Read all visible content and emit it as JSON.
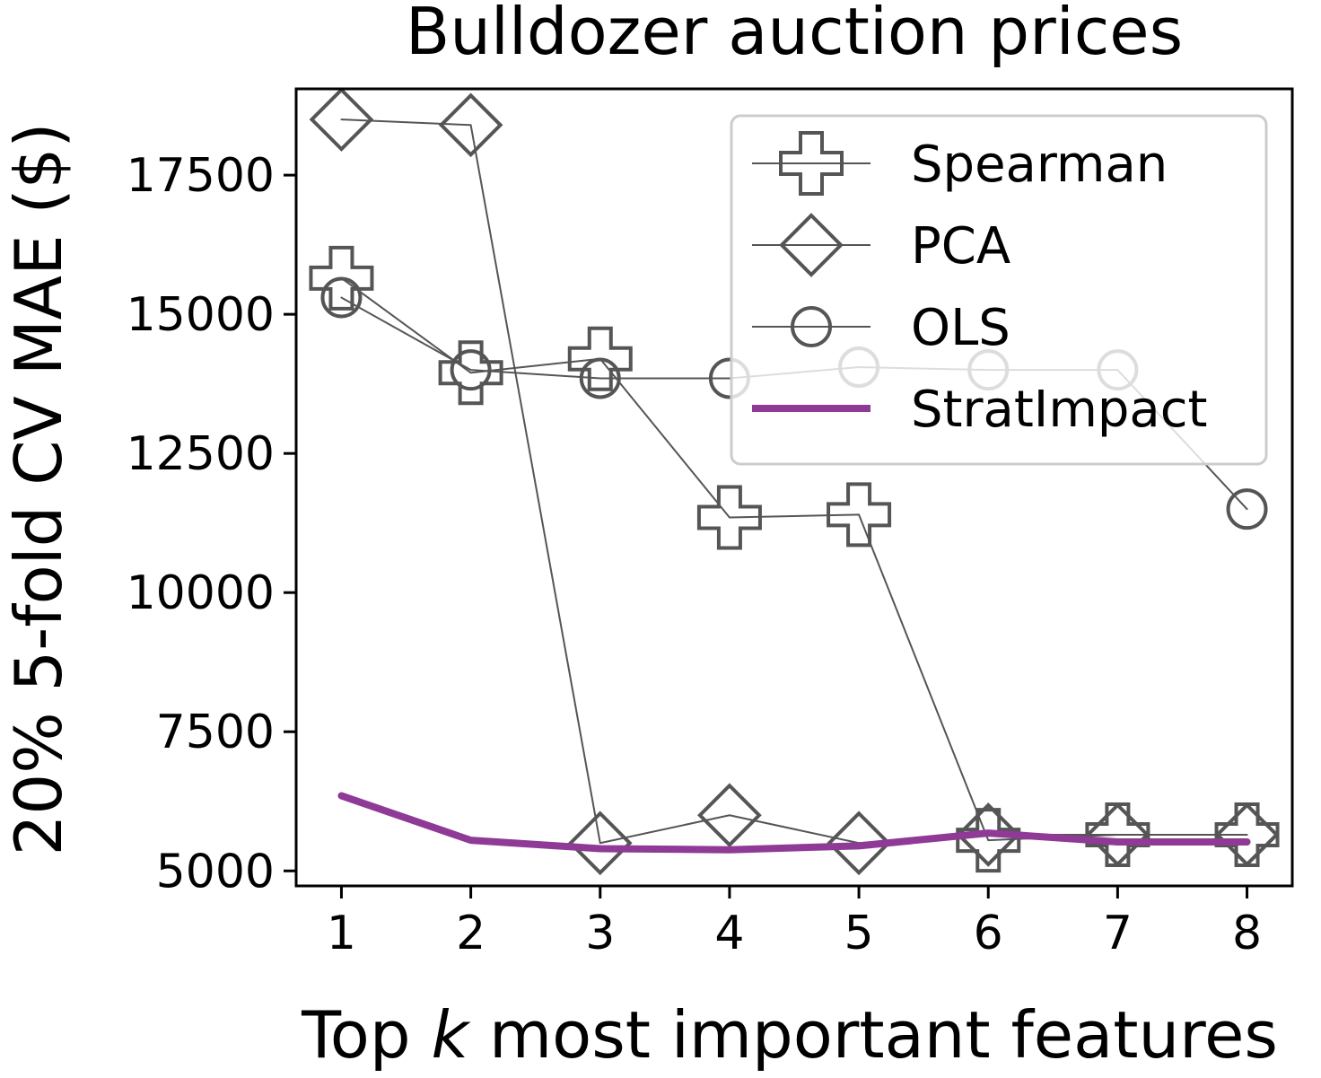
{
  "chart_data": {
    "type": "line",
    "title": "Bulldozer auction prices",
    "xlabel_prefix": "Top ",
    "xlabel_var": "k",
    "xlabel_suffix": " most important features",
    "ylabel": "20% 5-fold CV MAE ($)",
    "x": [
      1,
      2,
      3,
      4,
      5,
      6,
      7,
      8
    ],
    "xlim": [
      0.65,
      8.35
    ],
    "ylim": [
      4730,
      19050
    ],
    "yticks": [
      5000,
      7500,
      10000,
      12500,
      15000,
      17500
    ],
    "legend_position": "upper right",
    "series": [
      {
        "name": "Spearman",
        "marker": "plus",
        "color": "#555555",
        "values": [
          15650,
          13950,
          14200,
          11350,
          11400,
          5550,
          5650,
          5650
        ]
      },
      {
        "name": "PCA",
        "marker": "diamond",
        "color": "#555555",
        "values": [
          18500,
          18400,
          5500,
          6000,
          5500,
          5650,
          5650,
          5650
        ]
      },
      {
        "name": "OLS",
        "marker": "circle",
        "color": "#555555",
        "values": [
          15300,
          14000,
          13850,
          13850,
          14050,
          14000,
          14000,
          11500
        ]
      },
      {
        "name": "StratImpact",
        "marker": "none",
        "color": "#8e3a96",
        "values": [
          6350,
          5550,
          5400,
          5380,
          5450,
          5680,
          5520,
          5520
        ]
      }
    ]
  }
}
